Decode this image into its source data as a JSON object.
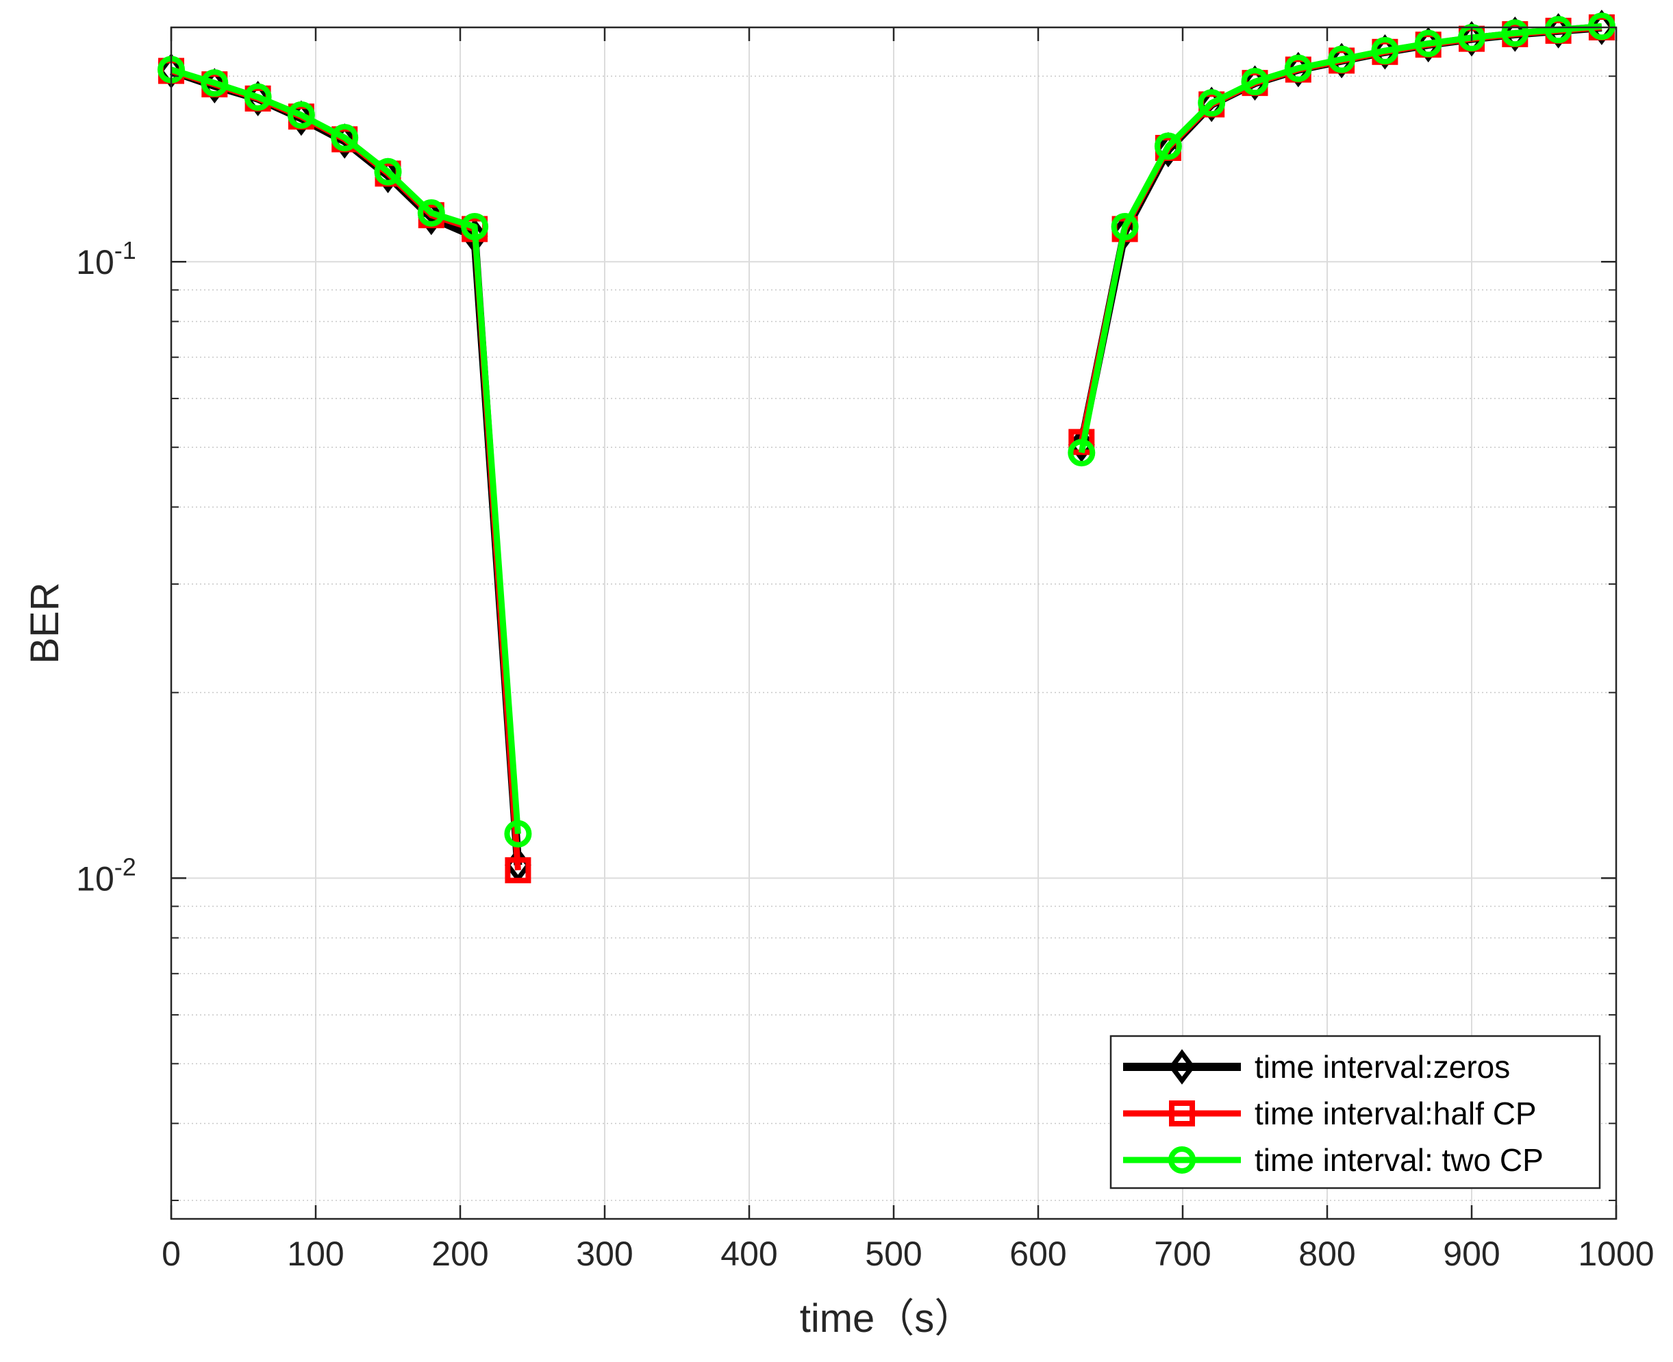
{
  "chart_data": {
    "type": "line",
    "title": "",
    "xlabel": "time（s）",
    "ylabel": "BER",
    "xlim": [
      0,
      1000
    ],
    "ylim": [
      0.0028,
      0.24
    ],
    "yscale": "log",
    "grid": true,
    "legend_position": "bottom-right",
    "x_ticks": [
      {
        "value": 0,
        "label": "0"
      },
      {
        "value": 100,
        "label": "100"
      },
      {
        "value": 200,
        "label": "200"
      },
      {
        "value": 300,
        "label": "300"
      },
      {
        "value": 400,
        "label": "400"
      },
      {
        "value": 500,
        "label": "500"
      },
      {
        "value": 600,
        "label": "600"
      },
      {
        "value": 700,
        "label": "700"
      },
      {
        "value": 800,
        "label": "800"
      },
      {
        "value": 900,
        "label": "900"
      },
      {
        "value": 1000,
        "label": "1000"
      }
    ],
    "y_ticks": [
      {
        "value": 0.1,
        "base": "10",
        "exp": "-1"
      },
      {
        "value": 0.01,
        "base": "10",
        "exp": "-2"
      }
    ],
    "series": [
      {
        "name": "time interval:zeros",
        "color": "#000000",
        "marker": "diamond",
        "segments": [
          {
            "x": [
              0,
              30,
              60,
              90,
              120,
              150,
              180,
              210,
              240
            ],
            "y": [
              0.204,
              0.193,
              0.184,
              0.171,
              0.157,
              0.138,
              0.118,
              0.11,
              0.0105
            ]
          },
          {
            "x": [
              630,
              660,
              690,
              720,
              750,
              780,
              810,
              840,
              870,
              900,
              930,
              960,
              990
            ],
            "y": [
              0.0505,
              0.112,
              0.152,
              0.18,
              0.195,
              0.205,
              0.212,
              0.219,
              0.225,
              0.23,
              0.234,
              0.237,
              0.24
            ]
          }
        ]
      },
      {
        "name": "time interval:half CP",
        "color": "#ff0000",
        "marker": "square",
        "segments": [
          {
            "x": [
              0,
              30,
              60,
              90,
              120,
              150,
              180,
              210,
              240
            ],
            "y": [
              0.204,
              0.194,
              0.184,
              0.172,
              0.158,
              0.139,
              0.119,
              0.113,
              0.0103
            ]
          },
          {
            "x": [
              630,
              660,
              690,
              720,
              750,
              780,
              810,
              840,
              870,
              900,
              930,
              960,
              990
            ],
            "y": [
              0.051,
              0.113,
              0.153,
              0.18,
              0.195,
              0.205,
              0.212,
              0.219,
              0.225,
              0.23,
              0.234,
              0.237,
              0.24
            ]
          }
        ]
      },
      {
        "name": "time interval: two CP",
        "color": "#00ff00",
        "marker": "circle",
        "segments": [
          {
            "x": [
              0,
              30,
              60,
              90,
              120,
              150,
              180,
              210,
              240
            ],
            "y": [
              0.205,
              0.195,
              0.185,
              0.173,
              0.159,
              0.14,
              0.12,
              0.114,
              0.0118
            ]
          },
          {
            "x": [
              630,
              660,
              690,
              720,
              750,
              780,
              810,
              840,
              870,
              900,
              930,
              960,
              990
            ],
            "y": [
              0.049,
              0.114,
              0.154,
              0.181,
              0.196,
              0.206,
              0.213,
              0.22,
              0.226,
              0.231,
              0.235,
              0.238,
              0.241
            ]
          }
        ]
      }
    ]
  }
}
